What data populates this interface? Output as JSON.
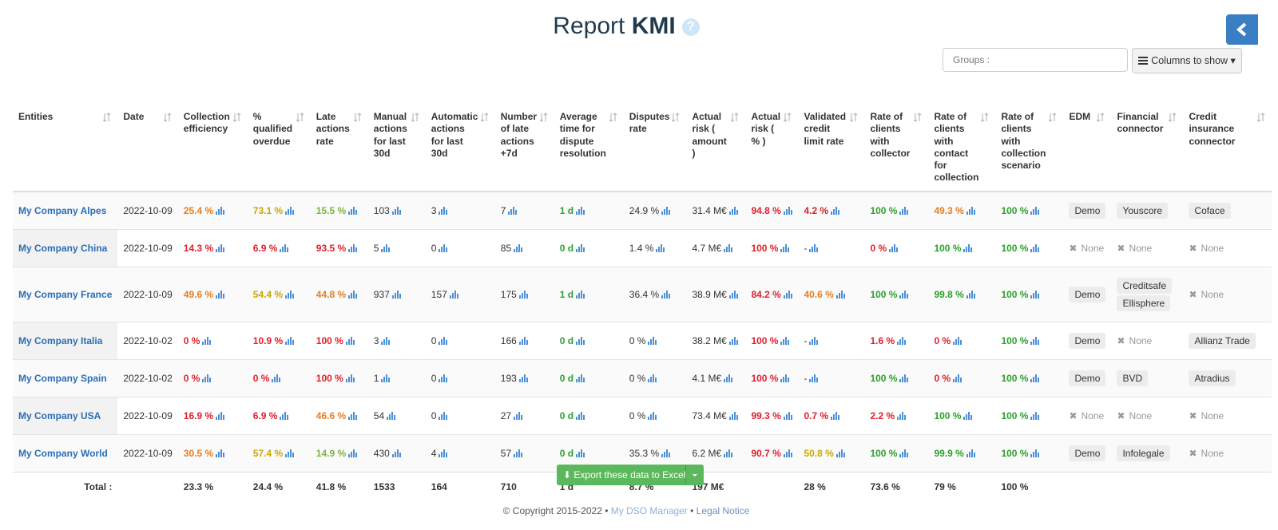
{
  "header": {
    "title": "Report",
    "title_strong": "KMI",
    "groups_placeholder": "Groups :",
    "columns_button": "Columns to show"
  },
  "tones": {
    "orange": "#e67e22",
    "yellow": "#c9a800",
    "lime": "#7cb342",
    "red": "#e0202b",
    "green": "#2ca02c",
    "plain": "#333333"
  },
  "table": {
    "columns": [
      "Entities",
      "Date",
      "Collection efficiency",
      "% qualified overdue",
      "Late actions rate",
      "Manual actions for last 30d",
      "Automatic actions for last 30d",
      "Number of late actions +7d",
      "Average time for dispute resolution",
      "Disputes rate",
      "Actual risk ( amount )",
      "Actual risk ( % )",
      "Validated credit limit rate",
      "Rate of clients with collector",
      "Rate of clients with contact for collection",
      "Rate of clients with collection scenario",
      "EDM",
      "Financial connector",
      "Credit insurance connector"
    ],
    "rows": [
      {
        "entity": "My Company Alpes",
        "date": "2022-10-09",
        "cells": [
          {
            "text": "25.4 %",
            "tone": "orange"
          },
          {
            "text": "73.1 %",
            "tone": "yellow"
          },
          {
            "text": "15.5 %",
            "tone": "lime"
          },
          {
            "text": "103",
            "tone": "plain"
          },
          {
            "text": "3",
            "tone": "plain"
          },
          {
            "text": "7",
            "tone": "plain"
          },
          {
            "text": "1 d",
            "tone": "green"
          },
          {
            "text": "24.9 %",
            "tone": "plain"
          },
          {
            "text": "31.4 M€",
            "tone": "plain"
          },
          {
            "text": "94.8 %",
            "tone": "red"
          },
          {
            "text": "4.2 %",
            "tone": "red"
          },
          {
            "text": "100 %",
            "tone": "green"
          },
          {
            "text": "49.3 %",
            "tone": "orange"
          },
          {
            "text": "100 %",
            "tone": "green"
          }
        ],
        "edm": [
          {
            "label": "Demo"
          }
        ],
        "financial": [
          {
            "label": "Youscore"
          }
        ],
        "insurance": [
          {
            "label": "Coface"
          }
        ]
      },
      {
        "entity": "My Company China",
        "date": "2022-10-09",
        "cells": [
          {
            "text": "14.3 %",
            "tone": "red"
          },
          {
            "text": "6.9 %",
            "tone": "red"
          },
          {
            "text": "93.5 %",
            "tone": "red"
          },
          {
            "text": "5",
            "tone": "plain"
          },
          {
            "text": "0",
            "tone": "plain"
          },
          {
            "text": "85",
            "tone": "plain"
          },
          {
            "text": "0 d",
            "tone": "green"
          },
          {
            "text": "1.4 %",
            "tone": "plain"
          },
          {
            "text": "4.7 M€",
            "tone": "plain"
          },
          {
            "text": "100 %",
            "tone": "red"
          },
          {
            "text": "-",
            "tone": "plain"
          },
          {
            "text": "0 %",
            "tone": "red"
          },
          {
            "text": "100 %",
            "tone": "green"
          },
          {
            "text": "100 %",
            "tone": "green"
          }
        ],
        "edm": [
          {
            "label": "None",
            "none": true
          }
        ],
        "financial": [
          {
            "label": "None",
            "none": true
          }
        ],
        "insurance": [
          {
            "label": "None",
            "none": true
          }
        ]
      },
      {
        "entity": "My Company France",
        "date": "2022-10-09",
        "cells": [
          {
            "text": "49.6 %",
            "tone": "orange"
          },
          {
            "text": "54.4 %",
            "tone": "yellow"
          },
          {
            "text": "44.8 %",
            "tone": "orange"
          },
          {
            "text": "937",
            "tone": "plain"
          },
          {
            "text": "157",
            "tone": "plain"
          },
          {
            "text": "175",
            "tone": "plain"
          },
          {
            "text": "1 d",
            "tone": "green"
          },
          {
            "text": "36.4 %",
            "tone": "plain"
          },
          {
            "text": "38.9 M€",
            "tone": "plain"
          },
          {
            "text": "84.2 %",
            "tone": "red"
          },
          {
            "text": "40.6 %",
            "tone": "orange"
          },
          {
            "text": "100 %",
            "tone": "green"
          },
          {
            "text": "99.8 %",
            "tone": "green"
          },
          {
            "text": "100 %",
            "tone": "green"
          }
        ],
        "edm": [
          {
            "label": "Demo"
          }
        ],
        "financial": [
          {
            "label": "Creditsafe"
          },
          {
            "label": "Ellisphere"
          }
        ],
        "insurance": [
          {
            "label": "None",
            "none": true
          }
        ]
      },
      {
        "entity": "My Company Italia",
        "date": "2022-10-02",
        "cells": [
          {
            "text": "0 %",
            "tone": "red"
          },
          {
            "text": "10.9 %",
            "tone": "red"
          },
          {
            "text": "100 %",
            "tone": "red"
          },
          {
            "text": "3",
            "tone": "plain"
          },
          {
            "text": "0",
            "tone": "plain"
          },
          {
            "text": "166",
            "tone": "plain"
          },
          {
            "text": "0 d",
            "tone": "green"
          },
          {
            "text": "0 %",
            "tone": "plain"
          },
          {
            "text": "38.2 M€",
            "tone": "plain"
          },
          {
            "text": "100 %",
            "tone": "red"
          },
          {
            "text": "-",
            "tone": "plain"
          },
          {
            "text": "1.6 %",
            "tone": "red"
          },
          {
            "text": "0 %",
            "tone": "red"
          },
          {
            "text": "100 %",
            "tone": "green"
          }
        ],
        "edm": [
          {
            "label": "Demo"
          }
        ],
        "financial": [
          {
            "label": "None",
            "none": true
          }
        ],
        "insurance": [
          {
            "label": "Allianz Trade"
          }
        ]
      },
      {
        "entity": "My Company Spain",
        "date": "2022-10-02",
        "cells": [
          {
            "text": "0 %",
            "tone": "red"
          },
          {
            "text": "0 %",
            "tone": "red"
          },
          {
            "text": "100 %",
            "tone": "red"
          },
          {
            "text": "1",
            "tone": "plain"
          },
          {
            "text": "0",
            "tone": "plain"
          },
          {
            "text": "193",
            "tone": "plain"
          },
          {
            "text": "0 d",
            "tone": "green"
          },
          {
            "text": "0 %",
            "tone": "plain"
          },
          {
            "text": "4.1 M€",
            "tone": "plain"
          },
          {
            "text": "100 %",
            "tone": "red"
          },
          {
            "text": "-",
            "tone": "plain"
          },
          {
            "text": "100 %",
            "tone": "green"
          },
          {
            "text": "0 %",
            "tone": "red"
          },
          {
            "text": "100 %",
            "tone": "green"
          }
        ],
        "edm": [
          {
            "label": "Demo"
          }
        ],
        "financial": [
          {
            "label": "BVD"
          }
        ],
        "insurance": [
          {
            "label": "Atradius"
          }
        ]
      },
      {
        "entity": "My Company USA",
        "date": "2022-10-09",
        "cells": [
          {
            "text": "16.9 %",
            "tone": "red"
          },
          {
            "text": "6.9 %",
            "tone": "red"
          },
          {
            "text": "46.6 %",
            "tone": "orange"
          },
          {
            "text": "54",
            "tone": "plain"
          },
          {
            "text": "0",
            "tone": "plain"
          },
          {
            "text": "27",
            "tone": "plain"
          },
          {
            "text": "0 d",
            "tone": "green"
          },
          {
            "text": "0 %",
            "tone": "plain"
          },
          {
            "text": "73.4 M€",
            "tone": "plain"
          },
          {
            "text": "99.3 %",
            "tone": "red"
          },
          {
            "text": "0.7 %",
            "tone": "red"
          },
          {
            "text": "2.2 %",
            "tone": "red"
          },
          {
            "text": "100 %",
            "tone": "green"
          },
          {
            "text": "100 %",
            "tone": "green"
          }
        ],
        "edm": [
          {
            "label": "None",
            "none": true
          }
        ],
        "financial": [
          {
            "label": "None",
            "none": true
          }
        ],
        "insurance": [
          {
            "label": "None",
            "none": true
          }
        ]
      },
      {
        "entity": "My Company World",
        "date": "2022-10-09",
        "cells": [
          {
            "text": "30.5 %",
            "tone": "orange"
          },
          {
            "text": "57.4 %",
            "tone": "yellow"
          },
          {
            "text": "14.9 %",
            "tone": "lime"
          },
          {
            "text": "430",
            "tone": "plain"
          },
          {
            "text": "4",
            "tone": "plain"
          },
          {
            "text": "57",
            "tone": "plain"
          },
          {
            "text": "0 d",
            "tone": "green"
          },
          {
            "text": "35.3 %",
            "tone": "plain"
          },
          {
            "text": "6.2 M€",
            "tone": "plain"
          },
          {
            "text": "90.7 %",
            "tone": "red"
          },
          {
            "text": "50.8 %",
            "tone": "yellow"
          },
          {
            "text": "100 %",
            "tone": "green"
          },
          {
            "text": "99.9 %",
            "tone": "green"
          },
          {
            "text": "100 %",
            "tone": "green"
          }
        ],
        "edm": [
          {
            "label": "Demo"
          }
        ],
        "financial": [
          {
            "label": "Infolegale"
          }
        ],
        "insurance": [
          {
            "label": "None",
            "none": true
          }
        ]
      }
    ],
    "total": {
      "label": "Total :",
      "cells": [
        "23.3 %",
        "24.4 %",
        "41.8 %",
        "1533",
        "164",
        "710",
        "1 d",
        "8.7 %",
        "197 M€",
        null,
        "28 %",
        "73.6 %",
        "79 %",
        "100 %"
      ]
    }
  },
  "export_button": "Export these data to Excel",
  "footer": {
    "copyright": "© Copyright 2015-2022 •",
    "brand": "My DSO Manager",
    "separator": "•",
    "legal": "Legal Notice"
  }
}
